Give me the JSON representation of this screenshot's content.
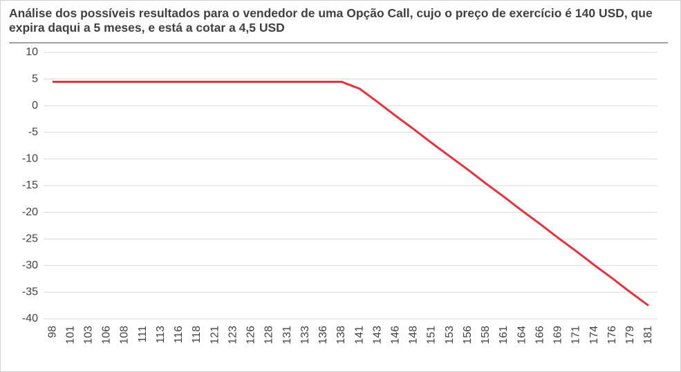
{
  "chart_data": {
    "type": "line",
    "title": "Análise  dos possíveis resultados para o vendedor de uma Opção Call, cujo o preço de exercício é 140 USD, que expira daqui a 5 meses, e está a cotar a 4,5 USD",
    "categories": [
      "98",
      "101",
      "103",
      "106",
      "108",
      "111",
      "113",
      "116",
      "118",
      "121",
      "123",
      "126",
      "128",
      "131",
      "133",
      "136",
      "138",
      "141",
      "143",
      "146",
      "148",
      "151",
      "153",
      "156",
      "158",
      "161",
      "164",
      "166",
      "169",
      "171",
      "174",
      "176",
      "179",
      "181"
    ],
    "series": [
      {
        "color": "#e8303a",
        "values": [
          4.5,
          4.5,
          4.5,
          4.5,
          4.5,
          4.5,
          4.5,
          4.5,
          4.5,
          4.5,
          4.5,
          4.5,
          4.5,
          4.5,
          4.5,
          4.5,
          4.5,
          3.2,
          0.7,
          -1.9,
          -4.4,
          -7.0,
          -9.5,
          -12.0,
          -14.6,
          -17.1,
          -19.7,
          -22.2,
          -24.8,
          -27.3,
          -29.9,
          -32.4,
          -35.0,
          -37.5
        ]
      }
    ],
    "ylim": [
      -40,
      10
    ],
    "yticks": [
      -40,
      -35,
      -30,
      -25,
      -20,
      -15,
      -10,
      -5,
      0,
      5,
      10
    ],
    "grid": true
  }
}
